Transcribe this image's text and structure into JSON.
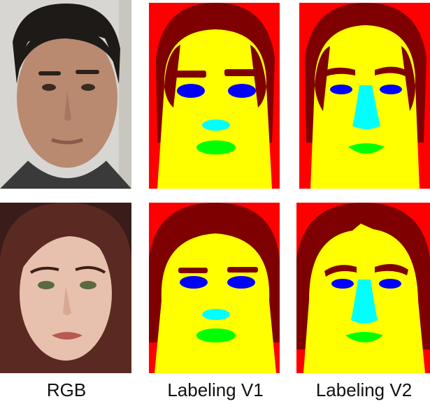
{
  "columns": [
    {
      "label": "RGB"
    },
    {
      "label": "Labeling V1"
    },
    {
      "label": "Labeling V2"
    }
  ],
  "rows": [
    {
      "subject": "man",
      "skin": "#b98a70",
      "hair": "#1e1a18",
      "background": "#d8d6d2"
    },
    {
      "subject": "woman",
      "skin": "#e8c0ae",
      "hair": "#5a2a22",
      "background": "#3a1c1a"
    }
  ],
  "segmentation_colors": {
    "background": "#ff0000",
    "hair": "#7f0000",
    "face": "#ffff00",
    "brows": "#7f0000",
    "eyes": "#0000ff",
    "nose": "#00ffff",
    "mouth": "#00ff00"
  }
}
